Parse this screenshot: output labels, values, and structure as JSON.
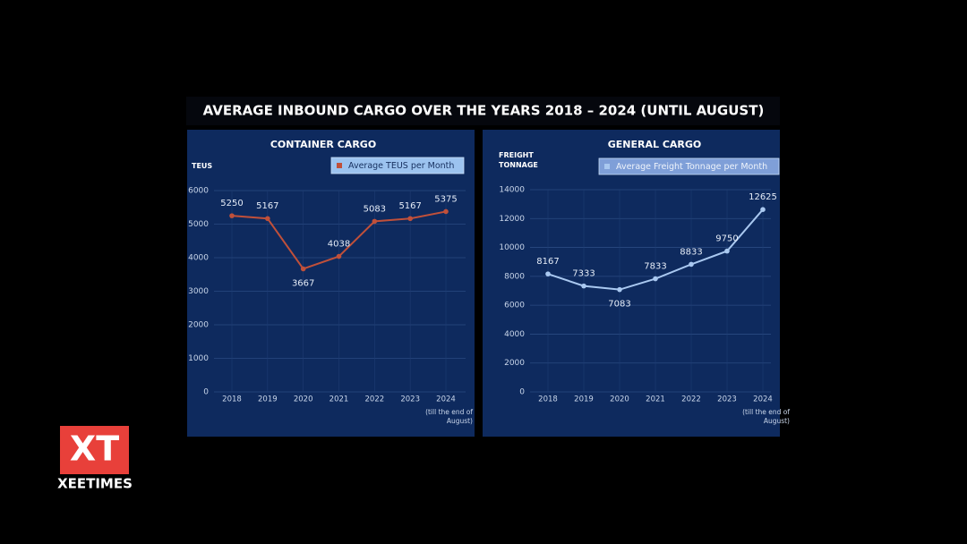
{
  "title": "AVERAGE INBOUND CARGO OVER THE YEARS 2018 – 2024 (UNTIL AUGUST)",
  "logo": {
    "mark": "XT",
    "name": "XEETIMES"
  },
  "chart_data": [
    {
      "type": "line",
      "title": "CONTAINER CARGO",
      "y_label": "TEUS",
      "categories": [
        "2018",
        "2019",
        "2020",
        "2021",
        "2022",
        "2023",
        "2024"
      ],
      "x_note": "(till the end of August)",
      "series": [
        {
          "name": "Average TEUS per Month",
          "color": "#c0503a",
          "values": [
            5250,
            5167,
            3667,
            4038,
            5083,
            5167,
            5375
          ]
        }
      ],
      "ylim": [
        0,
        6000
      ],
      "yticks": [
        0,
        1000,
        2000,
        3000,
        4000,
        5000,
        6000
      ],
      "grid": true,
      "legend": "top-right"
    },
    {
      "type": "line",
      "title": "GENERAL CARGO",
      "y_label": "FREIGHT TONNAGE",
      "categories": [
        "2018",
        "2019",
        "2020",
        "2021",
        "2022",
        "2023",
        "2024"
      ],
      "x_note": "(till the end of August)",
      "series": [
        {
          "name": "Average Freight Tonnage per Month",
          "color": "#a9c8f0",
          "values": [
            8167,
            7333,
            7083,
            7833,
            8833,
            9750,
            12625
          ]
        }
      ],
      "ylim": [
        0,
        14000
      ],
      "yticks": [
        0,
        2000,
        4000,
        6000,
        8000,
        10000,
        12000,
        14000
      ],
      "grid": true,
      "legend": "top-right"
    }
  ]
}
